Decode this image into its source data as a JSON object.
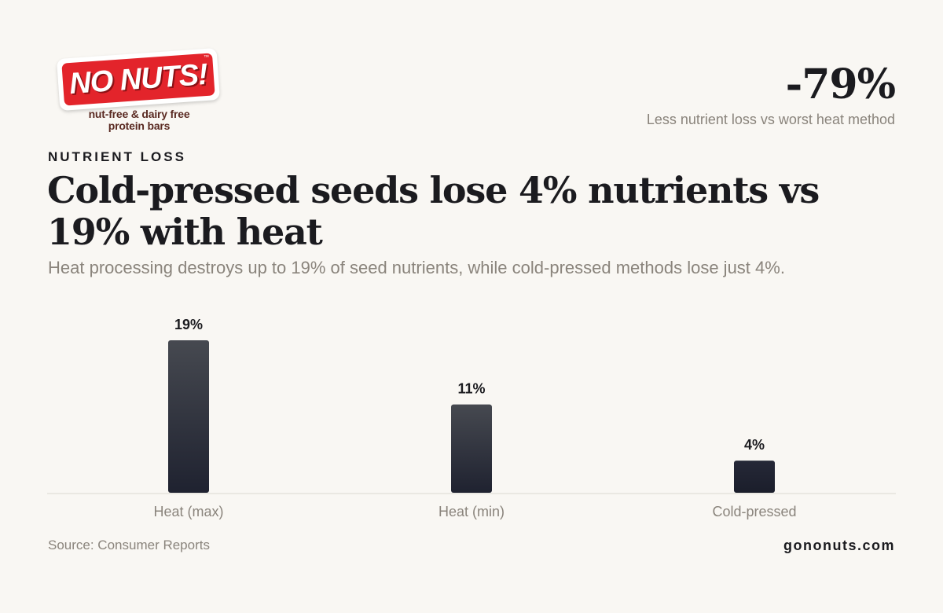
{
  "brand": {
    "logo_text": "NO NUTS!",
    "logo_tm": "™",
    "tagline_line1": "nut-free & dairy free",
    "tagline_line2": "protein bars",
    "logo_color": "#e3242b"
  },
  "kpi": {
    "value": "-79%",
    "label": "Less nutrient loss vs worst heat method"
  },
  "eyebrow": "NUTRIENT LOSS",
  "title": "Cold-pressed seeds lose 4% nutrients vs 19% with heat",
  "subtitle": "Heat processing destroys up to 19% of seed nutrients, while cold-pressed methods lose just 4%.",
  "footer": {
    "source": "Source: Consumer Reports",
    "site": "gononuts.com"
  },
  "chart_data": {
    "type": "bar",
    "categories": [
      "Heat (max)",
      "Heat (min)",
      "Cold-pressed"
    ],
    "values": [
      19,
      11,
      4
    ],
    "value_labels": [
      "19%",
      "11%",
      "4%"
    ],
    "ylim": [
      0,
      19
    ],
    "grid": false,
    "bar_colors": [
      "#3f4249",
      "#3f4249",
      "#1f2230"
    ]
  }
}
